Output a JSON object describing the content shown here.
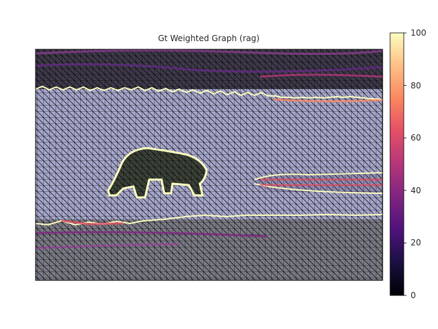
{
  "title": "Gt Weighted Graph (rag)",
  "chart_data": {
    "type": "heatmap",
    "title": "Gt Weighted Graph (rag)",
    "description_of_marks": "RAG mesh edges over an image, colored by weight",
    "colorbar": {
      "colormap": "magma",
      "range": [
        0,
        100
      ],
      "ticks": [
        0,
        20,
        40,
        60,
        80,
        100
      ]
    },
    "regions": [
      {
        "region": "sky-top",
        "weight": 30
      },
      {
        "region": "sky-horizon-boundary",
        "weight": 95
      },
      {
        "region": "snow-field",
        "weight": 5
      },
      {
        "region": "bear-outline",
        "weight": 100
      },
      {
        "region": "ice-ridge",
        "weight": 55
      },
      {
        "region": "water-boundary",
        "weight": 90
      },
      {
        "region": "water",
        "weight": 35
      }
    ]
  },
  "colors": {
    "sky": "#3a3540",
    "snow": "#a7a8cc",
    "bear": "#3b4238",
    "water": "#707078",
    "high_weight": "#fcfdbf",
    "mid_weight": "#e8546a",
    "low_weight": "#5c2a8a"
  }
}
